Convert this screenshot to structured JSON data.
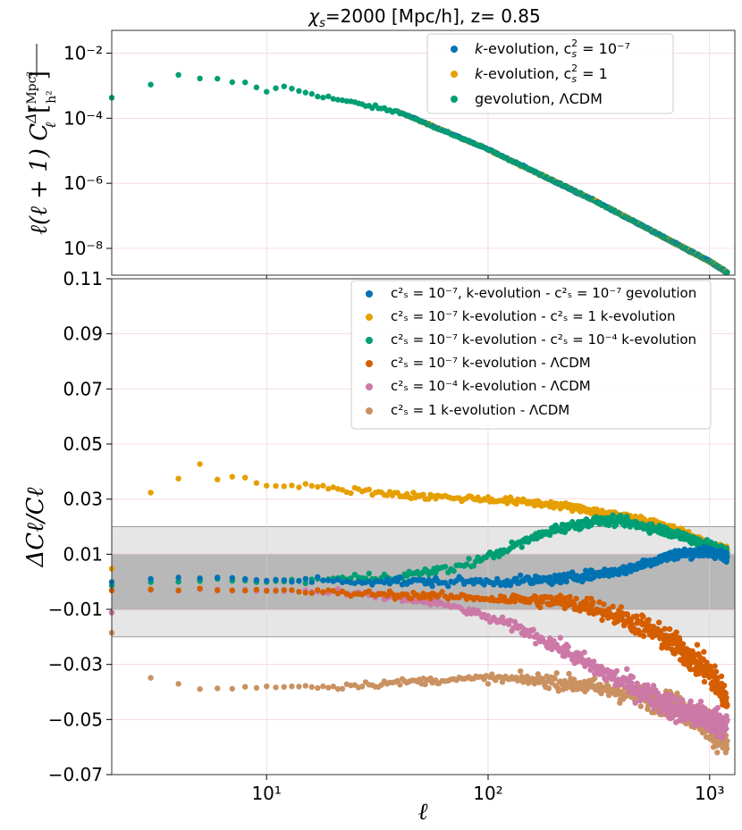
{
  "chart_data": [
    {
      "panel": "top",
      "type": "scatter",
      "title": "χs=2000 [Mpc/h], z= 0.85",
      "xlabel": "ℓ",
      "ylabel": "ℓ(ℓ+1) C_ℓ^{Δτ} [Mpc²/h²]",
      "xscale": "log",
      "yscale": "log",
      "xlim": [
        2,
        1300
      ],
      "ylim": [
        1.5e-09,
        0.05
      ],
      "yticks": [
        1e-08,
        1e-06,
        0.0001,
        0.01
      ],
      "ytick_labels": [
        "10⁻⁸",
        "10⁻⁶",
        "10⁻⁴",
        "10⁻²"
      ],
      "grid": true,
      "legend_position": "top-right",
      "series": [
        {
          "name": "k-evolution, cs² = 10⁻⁷",
          "color": "#0072b2"
        },
        {
          "name": "k-evolution, cs² = 1",
          "color": "#e69f00"
        },
        {
          "name": "gevolution, ΛCDM",
          "color": "#009e73"
        }
      ],
      "anchor_points": {
        "x": [
          2,
          4,
          6,
          8,
          10,
          12,
          20,
          40,
          100,
          300,
          1000,
          1200
        ],
        "y": [
          0.0004,
          0.002,
          0.0015,
          0.0012,
          0.0007,
          0.0009,
          0.0004,
          0.00015,
          1.1e-05,
          3e-07,
          4e-09,
          1.8e-09
        ]
      }
    },
    {
      "panel": "bottom",
      "type": "scatter",
      "xlabel": "ℓ",
      "ylabel": "ΔC_ℓ/C_ℓ",
      "xscale": "log",
      "xlim": [
        2,
        1300
      ],
      "ylim": [
        -0.07,
        0.11
      ],
      "yticks": [
        -0.07,
        -0.05,
        -0.03,
        -0.01,
        0.01,
        0.03,
        0.05,
        0.07,
        0.09,
        0.11
      ],
      "ytick_labels": [
        "−0.07",
        "−0.05",
        "−0.03",
        "−0.01",
        "0.01",
        "0.03",
        "0.05",
        "0.07",
        "0.09",
        "0.11"
      ],
      "xticks": [
        10,
        100,
        1000
      ],
      "xtick_labels": [
        "10¹",
        "10²",
        "10³"
      ],
      "bands": [
        {
          "range": [
            -0.02,
            0.02
          ],
          "color": "#e6e6e6"
        },
        {
          "range": [
            -0.01,
            0.01
          ],
          "color": "#b8b8b8"
        }
      ],
      "grid": true,
      "legend_position": "top-right",
      "series": [
        {
          "name": "cs² = 10⁻⁷, k-evolution - cs² = 10⁻⁷ gevolution",
          "color": "#0072b2",
          "x": [
            2,
            3,
            5,
            10,
            20,
            50,
            100,
            200,
            400,
            700,
            1000,
            1200
          ],
          "y": [
            0.0,
            0.001,
            0.0015,
            0.0005,
            0.0005,
            0.0,
            0.0,
            0.0008,
            0.004,
            0.01,
            0.011,
            0.009
          ]
        },
        {
          "name": "cs² = 10⁻⁷  k-evolution - cs² = 1  k-evolution",
          "color": "#e69f00",
          "x": [
            2,
            3,
            4,
            5,
            6,
            8,
            10,
            20,
            50,
            100,
            200,
            400,
            700,
            1000,
            1200
          ],
          "y": [
            0.005,
            0.033,
            0.037,
            0.043,
            0.037,
            0.038,
            0.035,
            0.034,
            0.031,
            0.03,
            0.028,
            0.024,
            0.019,
            0.013,
            0.011
          ]
        },
        {
          "name": "cs² = 10⁻⁷  k-evolution - cs² = 10⁻⁴  k-evolution",
          "color": "#009e73",
          "x": [
            2,
            3,
            5,
            10,
            20,
            40,
            70,
            100,
            150,
            200,
            300,
            400,
            600,
            800,
            1000,
            1200
          ],
          "y": [
            -0.001,
            0.0,
            0.0005,
            0.0,
            0.001,
            0.002,
            0.005,
            0.009,
            0.015,
            0.019,
            0.022,
            0.022,
            0.019,
            0.016,
            0.013,
            0.011
          ]
        },
        {
          "name": "cs² = 10⁻⁷  k-evolution - ΛCDM",
          "color": "#d55e00",
          "x": [
            2,
            3,
            5,
            10,
            20,
            50,
            100,
            200,
            300,
            500,
            700,
            1000,
            1200
          ],
          "y": [
            -0.003,
            -0.003,
            -0.003,
            -0.003,
            -0.004,
            -0.005,
            -0.006,
            -0.007,
            -0.009,
            -0.016,
            -0.023,
            -0.033,
            -0.043
          ]
        },
        {
          "name": "cs² = 10⁻⁴  k-evolution - ΛCDM",
          "color": "#cc79a7",
          "x": [
            2,
            3,
            5,
            10,
            20,
            30,
            50,
            70,
            100,
            150,
            200,
            300,
            500,
            700,
            1000,
            1200
          ],
          "y": [
            -0.011,
            -0.003,
            -0.003,
            -0.003,
            -0.004,
            -0.005,
            -0.007,
            -0.009,
            -0.013,
            -0.018,
            -0.023,
            -0.031,
            -0.04,
            -0.046,
            -0.05,
            -0.052
          ]
        },
        {
          "name": "cs² = 1  k-evolution - ΛCDM",
          "color": "#ca9161",
          "x": [
            2,
            3,
            5,
            10,
            20,
            50,
            100,
            200,
            400,
            700,
            1000,
            1200
          ],
          "y": [
            -0.018,
            -0.035,
            -0.039,
            -0.038,
            -0.038,
            -0.036,
            -0.035,
            -0.036,
            -0.04,
            -0.045,
            -0.052,
            -0.06
          ]
        }
      ]
    }
  ],
  "labels": {
    "title_chi": "χ",
    "title_sub": "s",
    "title_rest": "=2000 [Mpc/h], z= 0.85",
    "xlabel": "ℓ",
    "ylabel_bottom": "ΔCℓ/Cℓ",
    "ylabel_top": "ℓ(ℓ + 1) C",
    "ylabel_top_sup": "Δτ",
    "ylabel_top_sub": "ℓ",
    "ylabel_unit_num": "Mpc²",
    "ylabel_unit_den": "h²"
  },
  "legend_top": [
    {
      "prefix": "k",
      "text": "-evolution, c",
      "sub": "s",
      "sup": "2",
      "tail": " = 10⁻⁷"
    },
    {
      "prefix": "k",
      "text": "-evolution, c",
      "sub": "s",
      "sup": "2",
      "tail": " = 1"
    },
    {
      "prefix": "",
      "text": "gevolution, ΛCDM",
      "sub": "",
      "sup": "",
      "tail": ""
    }
  ],
  "legend_bottom": [
    "c²ₛ = 10⁻⁷, k-evolution - c²ₛ = 10⁻⁷ gevolution",
    "c²ₛ = 10⁻⁷  k-evolution - c²ₛ = 1  k-evolution",
    "c²ₛ = 10⁻⁷  k-evolution - c²ₛ = 10⁻⁴  k-evolution",
    "c²ₛ = 10⁻⁷  k-evolution - ΛCDM",
    "c²ₛ = 10⁻⁴  k-evolution - ΛCDM",
    "c²ₛ = 1  k-evolution - ΛCDM"
  ]
}
